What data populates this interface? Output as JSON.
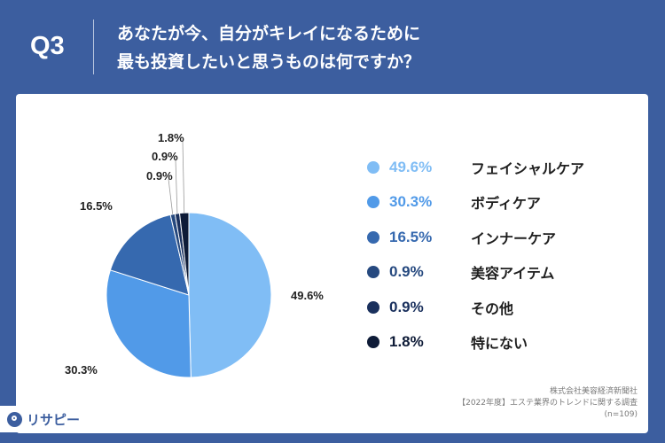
{
  "header": {
    "question_label": "Q3",
    "title_line1": "あなたが今、自分がキレイになるために",
    "title_line2": "最も投資したいと思うものは何ですか？"
  },
  "chart_data": {
    "type": "pie",
    "title": "",
    "start_angle_deg": 0,
    "direction": "clockwise",
    "legend_placement": "right",
    "slices": [
      {
        "label": "フェイシャルケア",
        "value": 49.6,
        "display": "49.6%",
        "color": "#80bdf5"
      },
      {
        "label": "ボディケア",
        "value": 30.3,
        "display": "30.3%",
        "color": "#519ae8"
      },
      {
        "label": "インナーケア",
        "value": 16.5,
        "display": "16.5%",
        "color": "#3669af"
      },
      {
        "label": "美容アイテム",
        "value": 0.9,
        "display": "0.9%",
        "color": "#26497f"
      },
      {
        "label": "その他",
        "value": 0.9,
        "display": "0.9%",
        "color": "#1a305d"
      },
      {
        "label": "特にない",
        "value": 1.8,
        "display": "1.8%",
        "color": "#0e1b37"
      }
    ]
  },
  "footer": {
    "source_company": "株式会社美容経済新聞社",
    "survey_title": "【2022年度】エステ業界のトレンドに関する調査",
    "sample_size": "(n=109)"
  },
  "brand": {
    "name": "リサピー"
  },
  "colors": {
    "background": "#3c5e9f",
    "card": "#ffffff"
  }
}
